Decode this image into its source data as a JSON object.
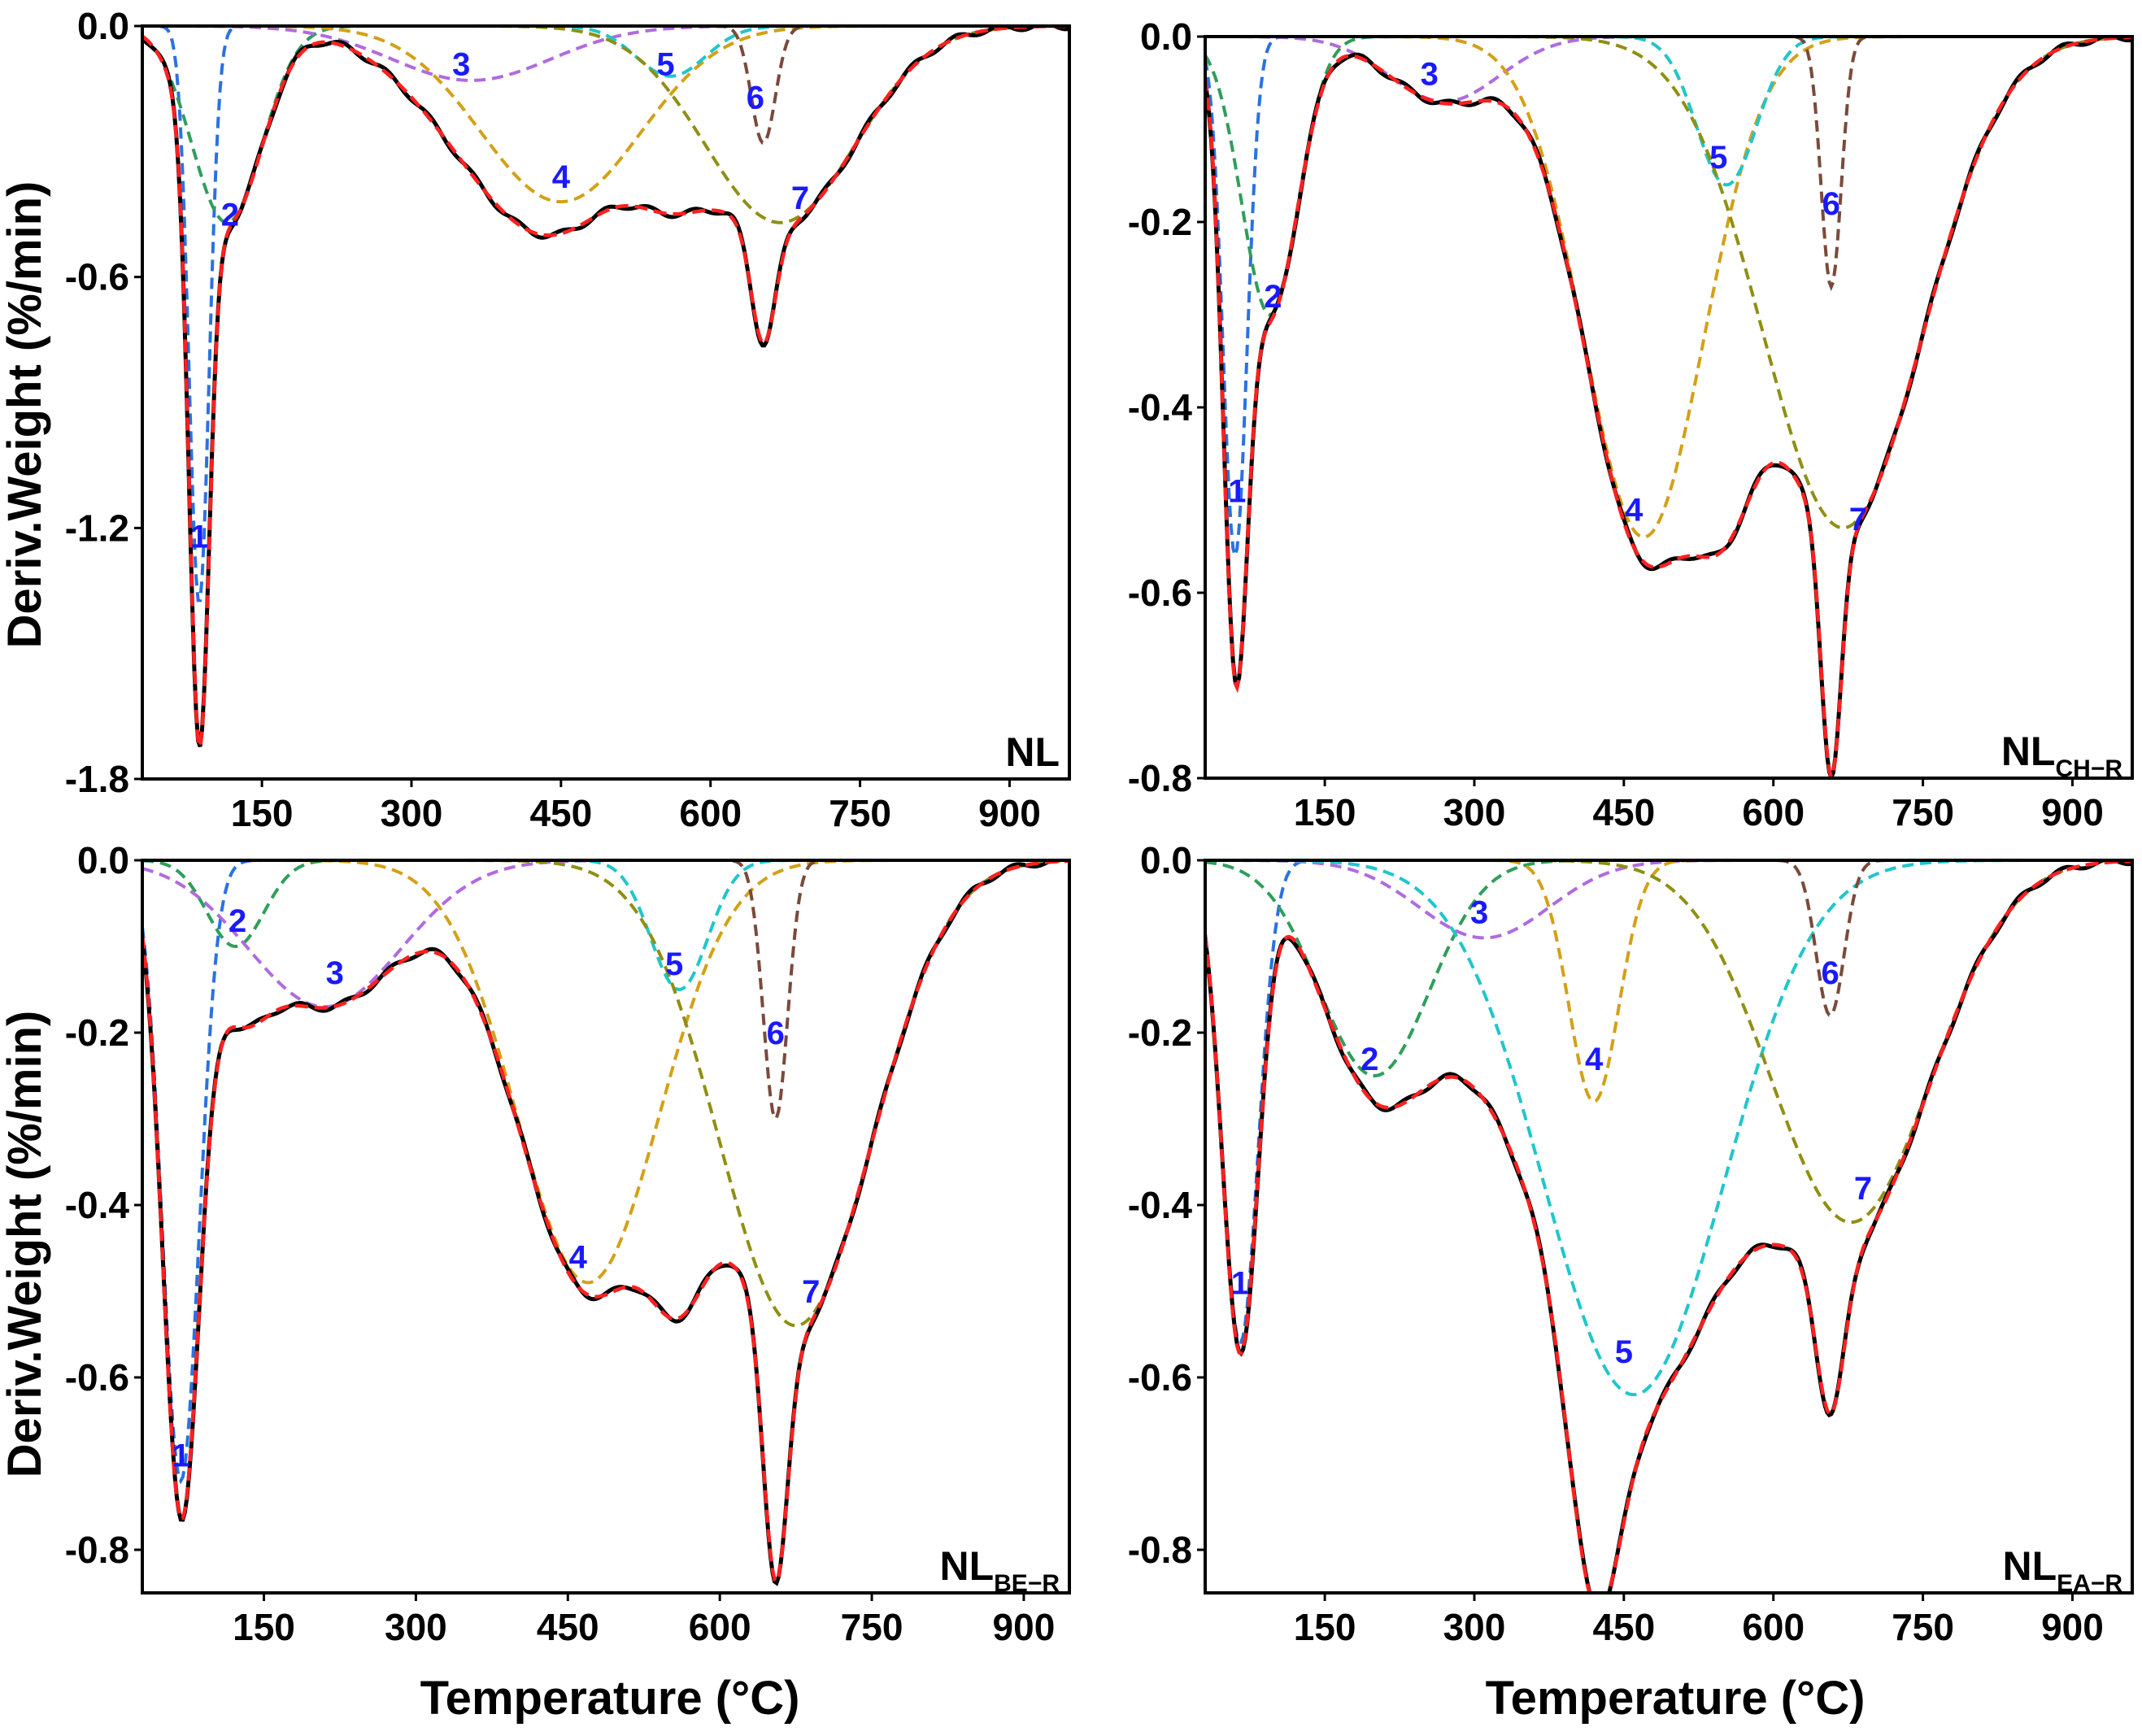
{
  "figure": {
    "xlabel": "Temperature (°C)",
    "ylabel": "Deriv.Weight (%/min)"
  },
  "colors": {
    "measured": "#000000",
    "fitted": "#ff2020",
    "peaks": [
      "#2b72e0",
      "#2f9e5a",
      "#b06be0",
      "#d4a017",
      "#1fc6cc",
      "#7a4a3a",
      "#8f8f14"
    ]
  },
  "chart_data": [
    {
      "type": "line",
      "panel": "NL",
      "label_main": "NL",
      "label_sub": "",
      "xlim": [
        30,
        960
      ],
      "ylim": [
        -1.8,
        0.0
      ],
      "xticks": [
        150,
        300,
        450,
        600,
        750,
        900
      ],
      "yticks": [
        0.0,
        -0.6,
        -1.2,
        -1.8
      ],
      "ytick_labels": [
        "0.0",
        "-0.6",
        "-1.2",
        "-1.8"
      ],
      "series": [
        {
          "name": "peak 1",
          "label": "1",
          "peak_x": 87,
          "peak_y": -1.38,
          "width": 10,
          "label_pos": [
            87,
            -1.22
          ]
        },
        {
          "name": "peak 2",
          "label": "2",
          "peak_x": 115,
          "peak_y": -0.47,
          "width": 35,
          "label_pos": [
            118,
            -0.45
          ]
        },
        {
          "name": "peak 3",
          "label": "3",
          "peak_x": 360,
          "peak_y": -0.13,
          "width": 80,
          "label_pos": [
            350,
            -0.09
          ]
        },
        {
          "name": "peak 4",
          "label": "4",
          "peak_x": 450,
          "peak_y": -0.42,
          "width": 80,
          "label_pos": [
            450,
            -0.36
          ]
        },
        {
          "name": "peak 5",
          "label": "5",
          "peak_x": 560,
          "peak_y": -0.12,
          "width": 35,
          "label_pos": [
            555,
            -0.09
          ]
        },
        {
          "name": "peak 6",
          "label": "6",
          "peak_x": 653,
          "peak_y": -0.28,
          "width": 12,
          "label_pos": [
            645,
            -0.17
          ]
        },
        {
          "name": "peak 7",
          "label": "7",
          "peak_x": 670,
          "peak_y": -0.47,
          "width": 75,
          "label_pos": [
            690,
            -0.41
          ]
        }
      ],
      "measured_offset": {
        "peak": 0,
        "height": 0.02,
        "width": 1
      }
    },
    {
      "type": "line",
      "panel": "NL_CH-R",
      "label_main": "NL",
      "label_sub": "CH−R",
      "xlim": [
        30,
        960
      ],
      "ylim": [
        -0.8,
        0.0
      ],
      "xticks": [
        150,
        300,
        450,
        600,
        750,
        900
      ],
      "yticks": [
        0.0,
        -0.2,
        -0.4,
        -0.6,
        -0.8
      ],
      "ytick_labels": [
        "0.0",
        "-0.2",
        "-0.4",
        "-0.6",
        "-0.8"
      ],
      "series": [
        {
          "name": "peak 1",
          "label": "1",
          "peak_x": 60,
          "peak_y": -0.56,
          "width": 12,
          "label_pos": [
            62,
            -0.49
          ]
        },
        {
          "name": "peak 2",
          "label": "2",
          "peak_x": 95,
          "peak_y": -0.3,
          "width": 28,
          "label_pos": [
            98,
            -0.28
          ]
        },
        {
          "name": "peak 3",
          "label": "3",
          "peak_x": 270,
          "peak_y": -0.07,
          "width": 55,
          "label_pos": [
            255,
            -0.04
          ]
        },
        {
          "name": "peak 4",
          "label": "4",
          "peak_x": 470,
          "peak_y": -0.54,
          "width": 60,
          "label_pos": [
            460,
            -0.51
          ]
        },
        {
          "name": "peak 5",
          "label": "5",
          "peak_x": 553,
          "peak_y": -0.16,
          "width": 30,
          "label_pos": [
            545,
            -0.13
          ]
        },
        {
          "name": "peak 6",
          "label": "6",
          "peak_x": 658,
          "peak_y": -0.27,
          "width": 10,
          "label_pos": [
            658,
            -0.18
          ]
        },
        {
          "name": "peak 7",
          "label": "7",
          "peak_x": 670,
          "peak_y": -0.53,
          "width": 80,
          "label_pos": [
            685,
            -0.52
          ]
        }
      ],
      "measured_offset": {
        "peak": 0,
        "height": 0,
        "width": 1
      }
    },
    {
      "type": "line",
      "panel": "NL_BE-R",
      "label_main": "NL",
      "label_sub": "BE−R",
      "xlim": [
        30,
        945
      ],
      "ylim": [
        -0.85,
        0.0
      ],
      "xticks": [
        150,
        300,
        450,
        600,
        750,
        900
      ],
      "yticks": [
        0.0,
        -0.2,
        -0.4,
        -0.6,
        -0.8
      ],
      "ytick_labels": [
        "0.0",
        "-0.2",
        "-0.4",
        "-0.6",
        "-0.8"
      ],
      "series": [
        {
          "name": "peak 1",
          "label": "1",
          "peak_x": 68,
          "peak_y": -0.72,
          "width": 18,
          "label_pos": [
            68,
            -0.69
          ]
        },
        {
          "name": "peak 2",
          "label": "2",
          "peak_x": 122,
          "peak_y": -0.1,
          "width": 28,
          "label_pos": [
            124,
            -0.07
          ]
        },
        {
          "name": "peak 3",
          "label": "3",
          "peak_x": 210,
          "peak_y": -0.17,
          "width": 75,
          "label_pos": [
            220,
            -0.13
          ]
        },
        {
          "name": "peak 4",
          "label": "4",
          "peak_x": 470,
          "peak_y": -0.49,
          "width": 70,
          "label_pos": [
            460,
            -0.46
          ]
        },
        {
          "name": "peak 5",
          "label": "5",
          "peak_x": 560,
          "peak_y": -0.15,
          "width": 28,
          "label_pos": [
            555,
            -0.12
          ]
        },
        {
          "name": "peak 6",
          "label": "6",
          "peak_x": 655,
          "peak_y": -0.3,
          "width": 12,
          "label_pos": [
            655,
            -0.2
          ]
        },
        {
          "name": "peak 7",
          "label": "7",
          "peak_x": 675,
          "peak_y": -0.54,
          "width": 75,
          "label_pos": [
            690,
            -0.5
          ]
        }
      ],
      "measured_offset": {
        "peak": 0,
        "height": 0,
        "width": 1
      }
    },
    {
      "type": "line",
      "panel": "NL_EA-R",
      "label_main": "NL",
      "label_sub": "EA−R",
      "xlim": [
        30,
        960
      ],
      "ylim": [
        -0.85,
        0.0
      ],
      "xticks": [
        150,
        300,
        450,
        600,
        750,
        900
      ],
      "yticks": [
        0.0,
        -0.2,
        -0.4,
        -0.6,
        -0.8
      ],
      "ytick_labels": [
        "0.0",
        "-0.2",
        "-0.4",
        "-0.6",
        "-0.8"
      ],
      "series": [
        {
          "name": "peak 1",
          "label": "1",
          "peak_x": 65,
          "peak_y": -0.56,
          "width": 18,
          "label_pos": [
            65,
            -0.49
          ]
        },
        {
          "name": "peak 2",
          "label": "2",
          "peak_x": 200,
          "peak_y": -0.25,
          "width": 55,
          "label_pos": [
            195,
            -0.23
          ]
        },
        {
          "name": "peak 3",
          "label": "3",
          "peak_x": 310,
          "peak_y": -0.09,
          "width": 65,
          "label_pos": [
            305,
            -0.06
          ]
        },
        {
          "name": "peak 4",
          "label": "4",
          "peak_x": 420,
          "peak_y": -0.28,
          "width": 25,
          "label_pos": [
            420,
            -0.23
          ]
        },
        {
          "name": "peak 5",
          "label": "5",
          "peak_x": 460,
          "peak_y": -0.62,
          "width": 90,
          "label_pos": [
            450,
            -0.57
          ]
        },
        {
          "name": "peak 6",
          "label": "6",
          "peak_x": 657,
          "peak_y": -0.18,
          "width": 14,
          "label_pos": [
            657,
            -0.13
          ]
        },
        {
          "name": "peak 7",
          "label": "7",
          "peak_x": 678,
          "peak_y": -0.42,
          "width": 80,
          "label_pos": [
            690,
            -0.38
          ]
        }
      ],
      "measured_offset": {
        "peak": 0,
        "height": 0,
        "width": 1
      }
    }
  ]
}
